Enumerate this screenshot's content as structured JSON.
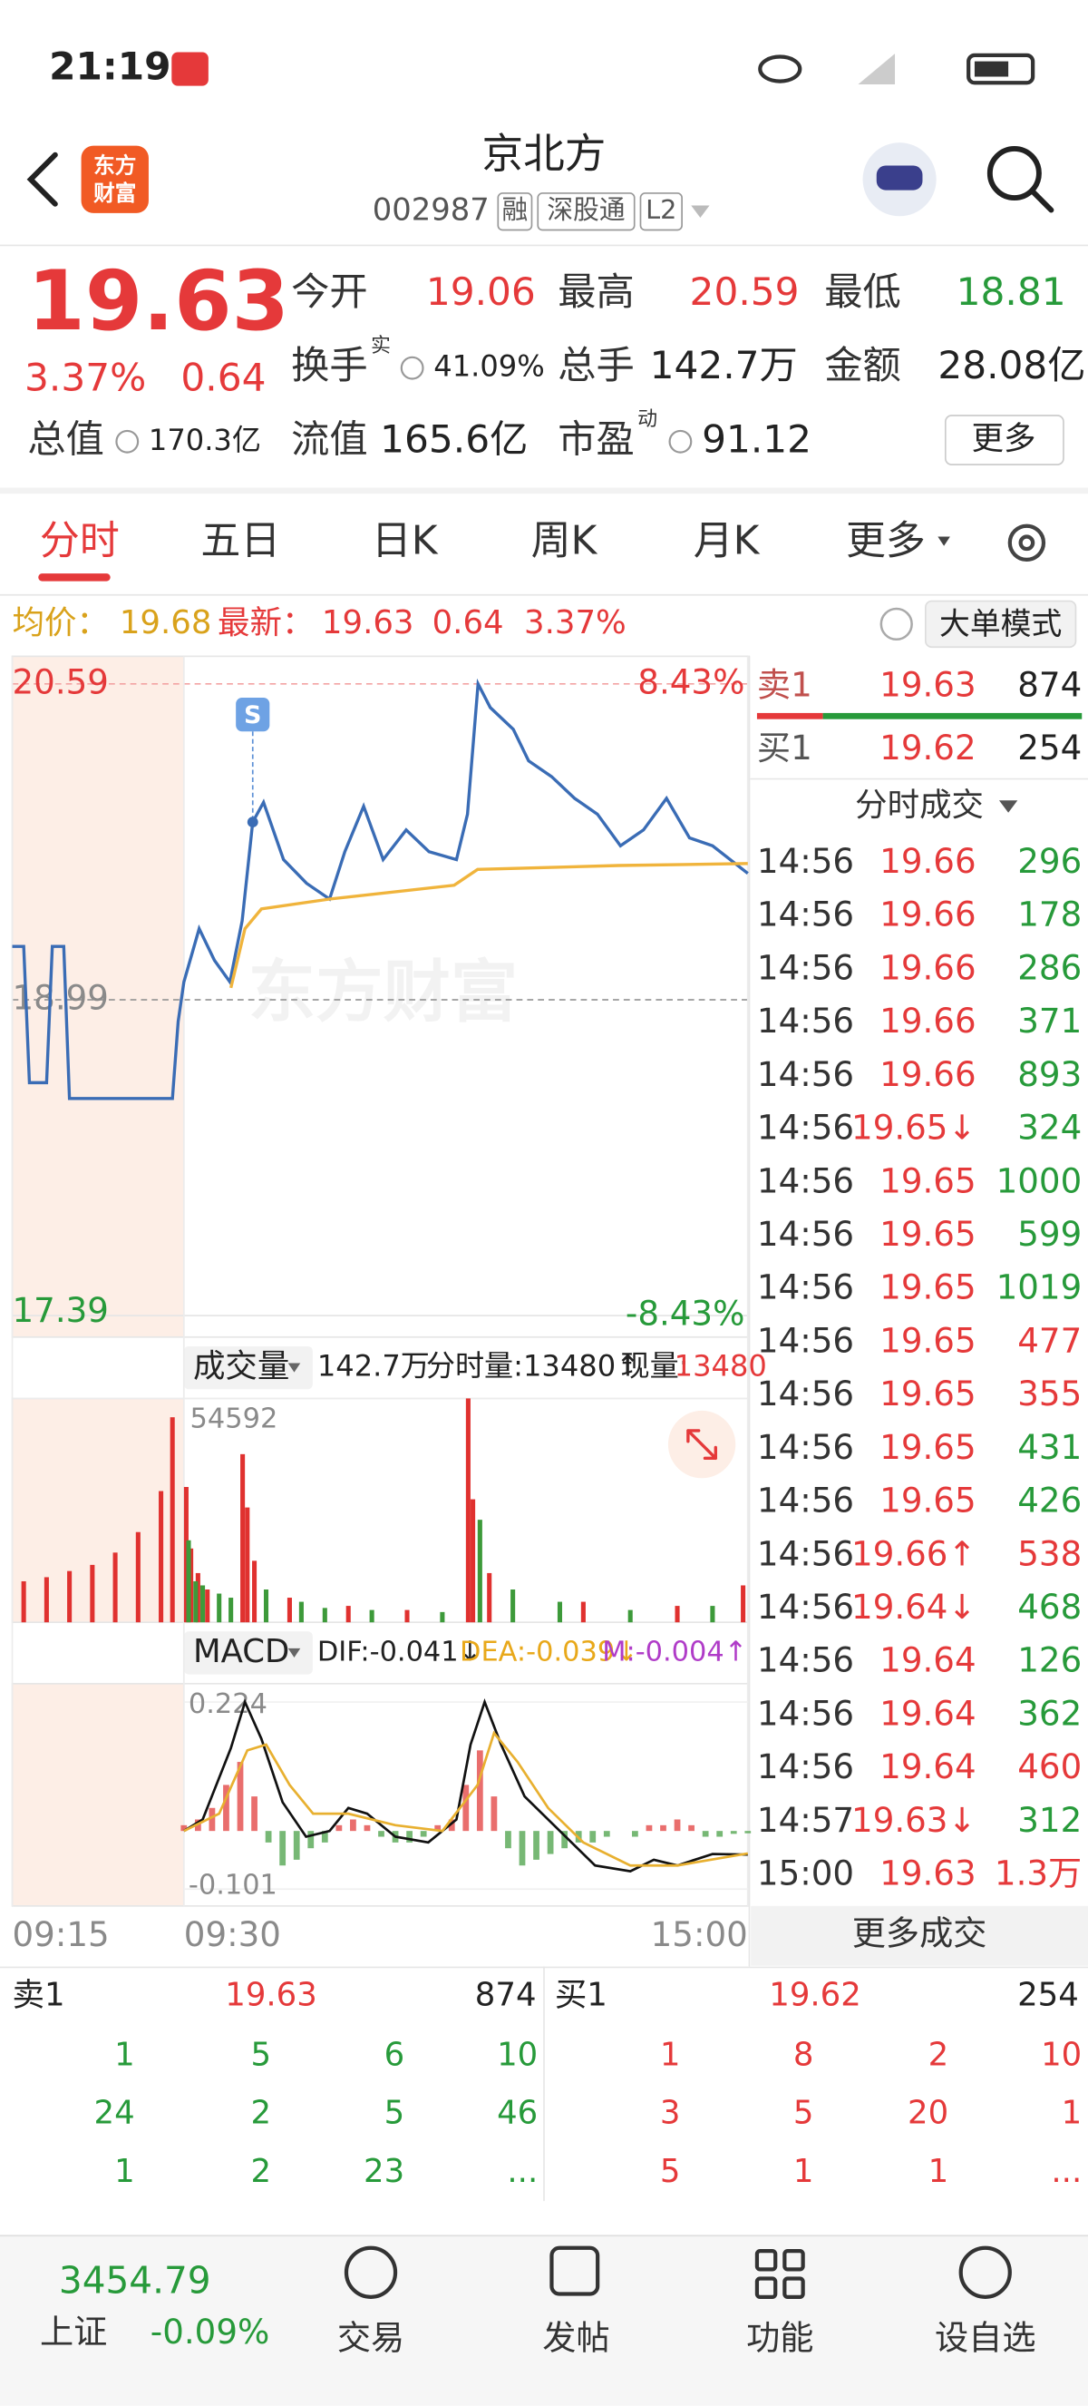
{
  "status_bar": {
    "time": "21:19"
  },
  "header": {
    "logo": [
      "东方",
      "财富"
    ],
    "title": "京北方",
    "code": "002987",
    "tags": [
      "融",
      "深股通",
      "L2"
    ]
  },
  "quote": {
    "price": "19.63",
    "change_pct": "3.37%",
    "change": "0.64",
    "fields": [
      {
        "label": "今开",
        "value": "19.06"
      },
      {
        "label": "最高",
        "value": "20.59"
      },
      {
        "label": "最低",
        "value": "18.81"
      },
      {
        "label": "换手",
        "sup": "实",
        "value": "41.09%"
      },
      {
        "label": "总手",
        "value": "142.7万"
      },
      {
        "label": "金额",
        "value": "28.08亿"
      },
      {
        "label": "总值",
        "value": "170.3亿"
      },
      {
        "label": "流值",
        "value": "165.6亿"
      },
      {
        "label": "市盈",
        "sup": "动",
        "value": "91.12"
      }
    ],
    "more": "更多"
  },
  "tabs": {
    "items": [
      "分时",
      "五日",
      "日K",
      "周K",
      "月K",
      "更多"
    ]
  },
  "info_bar": {
    "avg_label": "均价：",
    "avg": "19.68",
    "last_label": "最新：",
    "last": "19.63",
    "change": "0.64",
    "change_pct": "3.37%",
    "mode_button": "大单模式"
  },
  "watermark": "东方财富",
  "chart_data": [
    {
      "type": "line",
      "series": [
        {
          "color": "#3a6cb5",
          "x": [
            -15,
            -14,
            -13.5,
            -12,
            -11.5,
            -10.5,
            -10,
            -1,
            -0.5,
            0,
            6.5,
            13,
            19.6,
            24.8,
            29.3,
            33.9,
            42.4,
            52.2,
            62,
            68.5,
            76.5,
            84.8,
            94.6,
            104.3,
            116,
            120.7,
            125.2,
            130.4,
            140.2,
            146.7,
            156.5,
            166.3,
            176,
            185.8,
            195.6,
            205.4,
            215.2,
            225,
            240
          ],
          "values": [
            19.26,
            19.26,
            18.57,
            18.57,
            19.26,
            19.26,
            18.49,
            18.49,
            18.88,
            19.08,
            19.35,
            19.19,
            19.08,
            19.39,
            19.89,
            19.99,
            19.7,
            19.58,
            19.5,
            19.74,
            19.97,
            19.7,
            19.85,
            19.74,
            19.7,
            19.93,
            20.59,
            20.47,
            20.36,
            20.2,
            20.12,
            20.01,
            19.93,
            19.77,
            19.85,
            20.01,
            19.81,
            19.77,
            19.63
          ]
        },
        {
          "color": "#f0b43c",
          "x": [
            20,
            26,
            33,
            62,
            115,
            125,
            185,
            240
          ],
          "values": [
            19.05,
            19.35,
            19.45,
            19.5,
            19.57,
            19.65,
            19.67,
            19.68
          ]
        }
      ],
      "annotations": [
        {
          "text": "S",
          "x": 29.3,
          "value": 19.89
        }
      ],
      "xlim": [
        -15,
        240
      ],
      "xticks": [
        {
          "value": -15,
          "label": "09:15"
        },
        {
          "value": 0,
          "label": "09:30"
        },
        {
          "value": 240,
          "label": "15:00"
        }
      ],
      "ylim": [
        17.39,
        20.59
      ],
      "yticks": [
        20.59,
        18.99,
        17.39
      ],
      "y2lim": [
        -8.43,
        8.43
      ],
      "y2ticks": [
        {
          "value": 8.43,
          "label": "8.43%"
        },
        {
          "value": -8.43,
          "label": "-8.43%"
        }
      ]
    },
    {
      "type": "bar",
      "header": {
        "label": "成交量",
        "total": "142.7万",
        "minute_volume": "分时量:13480↑",
        "current_label": "现量:",
        "current": "13480"
      },
      "series": [
        {
          "color": "#e0312f",
          "x": [
            -14,
            -12,
            -10,
            -8,
            -6,
            -4,
            -2,
            -1,
            1,
            3,
            6,
            10,
            25,
            27,
            30,
            45,
            70,
            95,
            121,
            123,
            130,
            170,
            210,
            238
          ],
          "values": [
            10000,
            11000,
            12500,
            14000,
            17000,
            22000,
            32000,
            50000,
            33000,
            18000,
            12000,
            8000,
            41000,
            28000,
            15000,
            6000,
            4000,
            3000,
            54592,
            30000,
            12000,
            5000,
            4000,
            9000
          ]
        },
        {
          "color": "#3d9a3a",
          "x": [
            2,
            5,
            8,
            15,
            20,
            35,
            50,
            60,
            80,
            110,
            126,
            140,
            160,
            190,
            225
          ],
          "values": [
            20000,
            10000,
            9000,
            7000,
            6000,
            8000,
            5000,
            3500,
            3000,
            2500,
            25000,
            8000,
            5000,
            3000,
            4000
          ]
        }
      ],
      "xlim": [
        -15,
        240
      ],
      "ylim": [
        0,
        54592
      ],
      "yticks": [
        54592
      ]
    },
    {
      "type": "line",
      "header": {
        "label": "MACD",
        "dif": "DIF:-0.041↓",
        "dea": "DEA:-0.039↓",
        "m": "M:-0.004↑"
      },
      "series": [
        {
          "color": "#111111",
          "x": [
            0,
            8,
            20,
            26,
            33,
            42,
            52,
            62,
            70,
            78,
            90,
            104,
            116,
            122,
            128,
            135,
            145,
            160,
            175,
            190,
            200,
            210,
            225,
            240
          ],
          "values": [
            0.0,
            0.02,
            0.144,
            0.224,
            0.16,
            0.05,
            -0.01,
            0.0,
            0.04,
            0.03,
            -0.01,
            -0.02,
            0.02,
            0.15,
            0.224,
            0.15,
            0.06,
            0.0,
            -0.06,
            -0.07,
            -0.05,
            -0.06,
            -0.04,
            -0.041
          ]
        },
        {
          "color": "#e8b030",
          "x": [
            0,
            15,
            27,
            35,
            45,
            55,
            70,
            90,
            110,
            125,
            132,
            142,
            155,
            170,
            190,
            210,
            240
          ],
          "values": [
            0.0,
            0.03,
            0.14,
            0.15,
            0.08,
            0.03,
            0.03,
            0.01,
            0.0,
            0.08,
            0.17,
            0.12,
            0.04,
            -0.02,
            -0.06,
            -0.06,
            -0.039
          ]
        }
      ],
      "histogram": {
        "up_color": "#e0312f",
        "down_color": "#3d9a3a",
        "x": [
          0,
          6,
          12,
          18,
          24,
          30,
          36,
          42,
          48,
          54,
          60,
          66,
          72,
          78,
          84,
          90,
          96,
          102,
          108,
          114,
          120,
          126,
          132,
          138,
          144,
          150,
          156,
          162,
          168,
          174,
          180,
          186,
          192,
          198,
          204,
          210,
          216,
          222,
          228,
          234,
          240
        ],
        "values": [
          0.01,
          0.02,
          0.04,
          0.08,
          0.12,
          0.06,
          -0.02,
          -0.06,
          -0.05,
          -0.03,
          -0.02,
          0.01,
          0.02,
          0.01,
          -0.01,
          -0.02,
          -0.02,
          -0.01,
          0.01,
          0.02,
          0.08,
          0.14,
          0.06,
          -0.03,
          -0.06,
          -0.05,
          -0.04,
          -0.03,
          -0.02,
          -0.02,
          -0.01,
          0.0,
          -0.01,
          0.01,
          0.01,
          0.02,
          0.01,
          -0.01,
          -0.01,
          -0.005,
          -0.004
        ]
      },
      "xlim": [
        -15,
        240
      ],
      "ylim": [
        -0.101,
        0.224
      ],
      "yticks": [
        0.224,
        -0.101
      ]
    }
  ],
  "trade_panel": {
    "ask": {
      "label": "卖1",
      "price": "19.63",
      "volume": "874"
    },
    "bid": {
      "label": "买1",
      "price": "19.62",
      "volume": "254"
    },
    "ticks_title": "分时成交",
    "ticks": [
      [
        "14:56",
        "19.66",
        "296"
      ],
      [
        "14:56",
        "19.66",
        "178"
      ],
      [
        "14:56",
        "19.66",
        "286"
      ],
      [
        "14:56",
        "19.66",
        "371"
      ],
      [
        "14:56",
        "19.66",
        "893"
      ],
      [
        "14:56",
        "19.65↓",
        "324"
      ],
      [
        "14:56",
        "19.65",
        "1000"
      ],
      [
        "14:56",
        "19.65",
        "599"
      ],
      [
        "14:56",
        "19.65",
        "1019"
      ],
      [
        "14:56",
        "19.65",
        "477"
      ],
      [
        "14:56",
        "19.65",
        "355"
      ],
      [
        "14:56",
        "19.65",
        "431"
      ],
      [
        "14:56",
        "19.65",
        "426"
      ],
      [
        "14:56",
        "19.66↑",
        "538"
      ],
      [
        "14:56",
        "19.64↓",
        "468"
      ],
      [
        "14:56",
        "19.64",
        "126"
      ],
      [
        "14:56",
        "19.64",
        "362"
      ],
      [
        "14:56",
        "19.64",
        "460"
      ],
      [
        "14:57",
        "19.63↓",
        "312"
      ],
      [
        "15:00",
        "19.63",
        "1.3万"
      ]
    ],
    "tick_volume_colors": [
      "#279a3a",
      "#279a3a",
      "#279a3a",
      "#279a3a",
      "#279a3a",
      "#279a3a",
      "#279a3a",
      "#279a3a",
      "#279a3a",
      "#e5393a",
      "#e5393a",
      "#279a3a",
      "#279a3a",
      "#e5393a",
      "#279a3a",
      "#279a3a",
      "#279a3a",
      "#e5393a",
      "#279a3a",
      "#e5393a"
    ],
    "more": "更多成交"
  },
  "order_book": {
    "ask": {
      "label": "卖1",
      "price": "19.63",
      "volume": "874",
      "queue": [
        [
          "1",
          "5",
          "6",
          "10"
        ],
        [
          "24",
          "2",
          "5",
          "46"
        ],
        [
          "1",
          "2",
          "23",
          "..."
        ]
      ]
    },
    "bid": {
      "label": "买1",
      "price": "19.62",
      "volume": "254",
      "queue": [
        [
          "1",
          "8",
          "2",
          "10"
        ],
        [
          "3",
          "5",
          "20",
          "1"
        ],
        [
          "5",
          "1",
          "1",
          "..."
        ]
      ]
    }
  },
  "bottom_nav": {
    "index_value": "3454.79",
    "index_name": "上证",
    "index_change": "-0.09%",
    "items": [
      "交易",
      "发帖",
      "功能",
      "设自选"
    ]
  }
}
